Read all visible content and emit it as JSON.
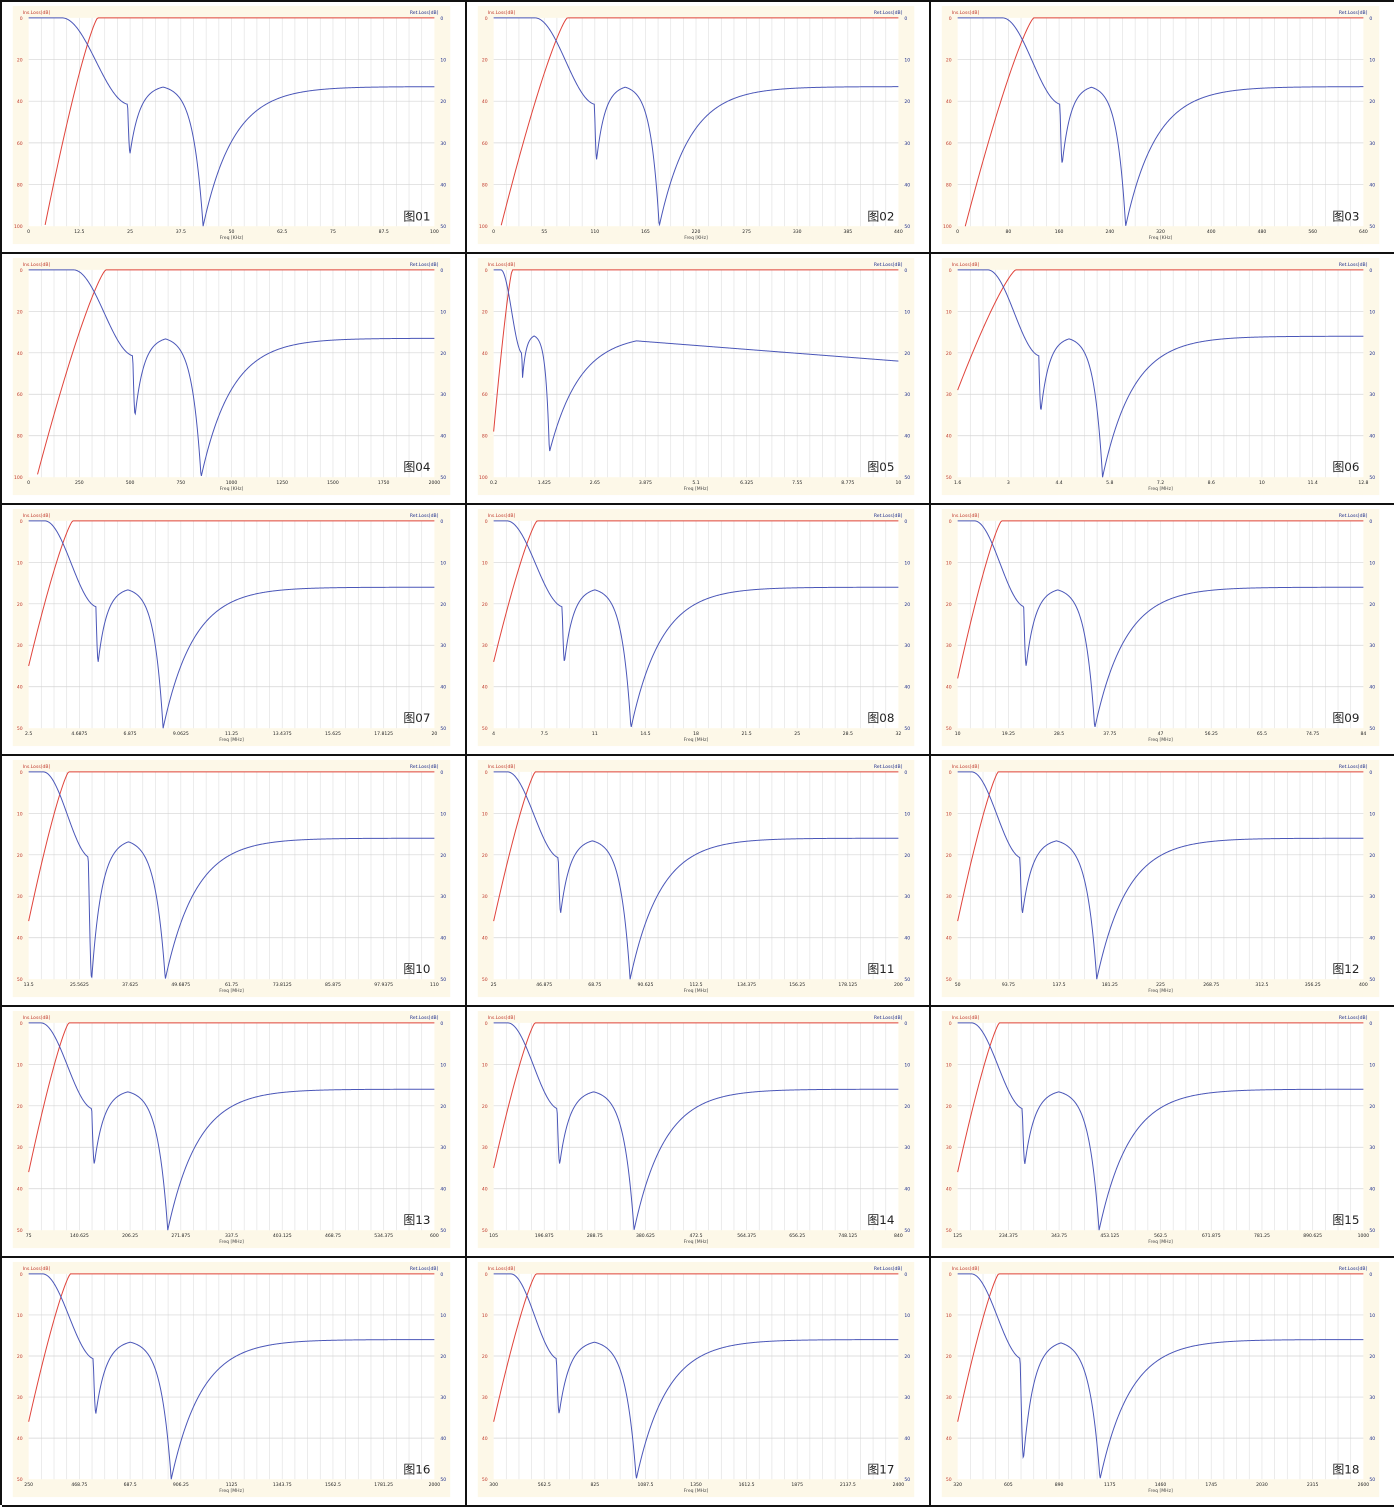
{
  "colors": {
    "insertion_loss": "#e0433a",
    "return_loss": "#4a56b8",
    "panel_bg": "#fdf8e8"
  },
  "chart_data": [
    {
      "type": "line",
      "figure_label": "图01",
      "left_axis_label": "Ins.Loss[dB]",
      "right_axis_label": "Ret.Loss[dB]",
      "xlabel": "Freq [KHz]",
      "x_ticks": [
        "0",
        "12.5",
        "25",
        "37.5",
        "50",
        "62.5",
        "75",
        "87.5",
        "100"
      ],
      "xlim": [
        0,
        100
      ],
      "left_ticks": [
        "0",
        "20",
        "40",
        "60",
        "80",
        "100"
      ],
      "right_ticks": [
        "0",
        "10",
        "20",
        "30",
        "40",
        "50"
      ],
      "left_lim": [
        0,
        100
      ],
      "right_lim": [
        0,
        50
      ],
      "cutoff": 17,
      "notch1": 25,
      "notch1_depth": 32.5,
      "notch2": 43,
      "notch2_depth": 50,
      "hump": 16,
      "hump_x": 29,
      "plateau": 16.5,
      "red_start": 4,
      "red_start_val": 100,
      "tail_to": 16.5
    },
    {
      "type": "line",
      "figure_label": "图02",
      "left_axis_label": "Ins.Loss[dB]",
      "right_axis_label": "Ret.Loss[dB]",
      "xlabel": "Freq [KHz]",
      "x_ticks": [
        "0",
        "55",
        "110",
        "165",
        "220",
        "275",
        "330",
        "385",
        "440"
      ],
      "xlim": [
        0,
        440
      ],
      "left_ticks": [
        "0",
        "20",
        "40",
        "60",
        "80",
        "100"
      ],
      "right_ticks": [
        "0",
        "10",
        "20",
        "30",
        "40",
        "50"
      ],
      "left_lim": [
        0,
        100
      ],
      "right_lim": [
        0,
        50
      ],
      "cutoff": 80,
      "notch1": 112,
      "notch1_depth": 34,
      "notch2": 180,
      "notch2_depth": 50,
      "hump": 16,
      "hump_x": 128,
      "plateau": 16.5,
      "red_start": 8,
      "red_start_val": 100,
      "tail_to": 16.5
    },
    {
      "type": "line",
      "figure_label": "图03",
      "left_axis_label": "Ins.Loss[dB]",
      "right_axis_label": "Ret.Loss[dB]",
      "xlabel": "Freq [KHz]",
      "x_ticks": [
        "0",
        "80",
        "160",
        "240",
        "320",
        "400",
        "480",
        "560",
        "640"
      ],
      "xlim": [
        0,
        640
      ],
      "left_ticks": [
        "0",
        "20",
        "40",
        "60",
        "80",
        "100"
      ],
      "right_ticks": [
        "0",
        "10",
        "20",
        "30",
        "40",
        "50"
      ],
      "left_lim": [
        0,
        100
      ],
      "right_lim": [
        0,
        50
      ],
      "cutoff": 120,
      "notch1": 165,
      "notch1_depth": 35,
      "notch2": 265,
      "notch2_depth": 50,
      "hump": 16,
      "hump_x": 190,
      "plateau": 16.5,
      "red_start": 12,
      "red_start_val": 100,
      "tail_to": 16.5
    },
    {
      "type": "line",
      "figure_label": "图04",
      "left_axis_label": "Ins.Loss[dB]",
      "right_axis_label": "Ret.Loss[dB]",
      "xlabel": "Freq [KHz]",
      "x_ticks": [
        "0",
        "250",
        "500",
        "750",
        "1000",
        "1250",
        "1500",
        "1750",
        "2000"
      ],
      "xlim": [
        0,
        2000
      ],
      "left_ticks": [
        "0",
        "20",
        "40",
        "60",
        "80",
        "100"
      ],
      "right_ticks": [
        "0",
        "10",
        "20",
        "30",
        "40",
        "50"
      ],
      "left_lim": [
        0,
        100
      ],
      "right_lim": [
        0,
        50
      ],
      "cutoff": 380,
      "notch1": 525,
      "notch1_depth": 35,
      "notch2": 850,
      "notch2_depth": 50,
      "hump": 16,
      "hump_x": 600,
      "plateau": 16.5,
      "red_start": 40,
      "red_start_val": 100,
      "tail_to": 16.5
    },
    {
      "type": "line",
      "figure_label": "图05",
      "left_axis_label": "Ins.Loss[dB]",
      "right_axis_label": "Ret.Loss[dB]",
      "xlabel": "Freq [MHz]",
      "x_ticks": [
        "0.2",
        "1.425",
        "2.65",
        "3.875",
        "5.1",
        "6.325",
        "7.55",
        "8.775",
        "10"
      ],
      "xlim": [
        0.2,
        10
      ],
      "left_ticks": [
        "0",
        "20",
        "40",
        "60",
        "80",
        "100"
      ],
      "right_ticks": [
        "0",
        "10",
        "20",
        "30",
        "40",
        "50"
      ],
      "left_lim": [
        0,
        100
      ],
      "right_lim": [
        0,
        50
      ],
      "cutoff": 0.65,
      "notch1": 0.9,
      "notch1_depth": 26,
      "notch2": 1.55,
      "notch2_depth": 44,
      "hump": 15.5,
      "hump_x": 2.5,
      "plateau": 15.5,
      "red_start": 0.2,
      "red_start_val": 78,
      "tail_to": 22
    },
    {
      "type": "line",
      "figure_label": "图06",
      "left_axis_label": "Ins.Loss[dB]",
      "right_axis_label": "Ret.Loss[dB]",
      "xlabel": "Freq [MHz]",
      "x_ticks": [
        "1.6",
        "3",
        "4.4",
        "5.8",
        "7.2",
        "8.6",
        "10",
        "11.4",
        "12.8"
      ],
      "xlim": [
        1.6,
        12.8
      ],
      "left_ticks": [
        "0",
        "10",
        "20",
        "30",
        "40",
        "50"
      ],
      "right_ticks": [
        "0",
        "10",
        "20",
        "30",
        "40",
        "50"
      ],
      "left_lim": [
        0,
        50
      ],
      "right_lim": [
        0,
        50
      ],
      "cutoff": 3.2,
      "notch1": 3.9,
      "notch1_depth": 34,
      "notch2": 5.6,
      "notch2_depth": 50,
      "hump": 16,
      "hump_x": 4.4,
      "plateau": 16,
      "red_start": 1.6,
      "red_start_val": 29,
      "tail_to": 16
    },
    {
      "type": "line",
      "figure_label": "图07",
      "left_axis_label": "Ins.Loss[dB]",
      "right_axis_label": "Ret.Loss[dB]",
      "xlabel": "Freq [MHz]",
      "x_ticks": [
        "2.5",
        "4.6875",
        "6.875",
        "9.0625",
        "11.25",
        "13.4375",
        "15.625",
        "17.8125",
        "20"
      ],
      "xlim": [
        2.5,
        20
      ],
      "left_ticks": [
        "0",
        "10",
        "20",
        "30",
        "40",
        "50"
      ],
      "right_ticks": [
        "0",
        "10",
        "20",
        "30",
        "40",
        "50"
      ],
      "left_lim": [
        0,
        50
      ],
      "right_lim": [
        0,
        50
      ],
      "cutoff": 4.4,
      "notch1": 5.5,
      "notch1_depth": 34,
      "notch2": 8.3,
      "notch2_depth": 50,
      "hump": 16,
      "hump_x": 6.3,
      "plateau": 16,
      "red_start": 2.5,
      "red_start_val": 35,
      "tail_to": 16
    },
    {
      "type": "line",
      "figure_label": "图08",
      "left_axis_label": "Ins.Loss[dB]",
      "right_axis_label": "Ret.Loss[dB]",
      "xlabel": "Freq [MHz]",
      "x_ticks": [
        "4",
        "7.5",
        "11",
        "14.5",
        "18",
        "21.5",
        "25",
        "28.5",
        "32"
      ],
      "xlim": [
        4,
        32
      ],
      "left_ticks": [
        "0",
        "10",
        "20",
        "30",
        "40",
        "50"
      ],
      "right_ticks": [
        "0",
        "10",
        "20",
        "30",
        "40",
        "50"
      ],
      "left_lim": [
        0,
        50
      ],
      "right_lim": [
        0,
        50
      ],
      "cutoff": 7.0,
      "notch1": 8.9,
      "notch1_depth": 34,
      "notch2": 13.5,
      "notch2_depth": 50,
      "hump": 16,
      "hump_x": 10.2,
      "plateau": 16,
      "red_start": 4,
      "red_start_val": 34,
      "tail_to": 16
    },
    {
      "type": "line",
      "figure_label": "图09",
      "left_axis_label": "Ins.Loss[dB]",
      "right_axis_label": "Ret.Loss[dB]",
      "xlabel": "Freq [MHz]",
      "x_ticks": [
        "10",
        "19.25",
        "28.5",
        "37.75",
        "47",
        "56.25",
        "65.5",
        "74.75",
        "84"
      ],
      "xlim": [
        10,
        84
      ],
      "left_ticks": [
        "0",
        "10",
        "20",
        "30",
        "40",
        "50"
      ],
      "right_ticks": [
        "0",
        "10",
        "20",
        "30",
        "40",
        "50"
      ],
      "left_lim": [
        0,
        50
      ],
      "right_lim": [
        0,
        50
      ],
      "cutoff": 18,
      "notch1": 22.5,
      "notch1_depth": 35,
      "notch2": 35,
      "notch2_depth": 50,
      "hump": 16,
      "hump_x": 26,
      "plateau": 16,
      "red_start": 10,
      "red_start_val": 38,
      "tail_to": 16
    },
    {
      "type": "line",
      "figure_label": "图10",
      "left_axis_label": "Ins.Loss[dB]",
      "right_axis_label": "Ret.Loss[dB]",
      "xlabel": "Freq [MHz]",
      "x_ticks": [
        "13.5",
        "25.5625",
        "37.625",
        "49.6875",
        "61.75",
        "73.8125",
        "85.875",
        "97.9375",
        "110"
      ],
      "xlim": [
        13.5,
        110
      ],
      "left_ticks": [
        "0",
        "10",
        "20",
        "30",
        "40",
        "50"
      ],
      "right_ticks": [
        "0",
        "10",
        "20",
        "30",
        "40",
        "50"
      ],
      "left_lim": [
        0,
        50
      ],
      "right_lim": [
        0,
        50
      ],
      "cutoff": 23,
      "notch1": 28.5,
      "notch1_depth": 50,
      "notch2": 46,
      "notch2_depth": 50,
      "hump": 16,
      "hump_x": 33,
      "plateau": 16,
      "red_start": 13.5,
      "red_start_val": 36,
      "tail_to": 16
    },
    {
      "type": "line",
      "figure_label": "图11",
      "left_axis_label": "Ins.Loss[dB]",
      "right_axis_label": "Ret.Loss[dB]",
      "xlabel": "Freq [MHz]",
      "x_ticks": [
        "25",
        "46.875",
        "68.75",
        "90.625",
        "112.5",
        "134.375",
        "156.25",
        "178.125",
        "200"
      ],
      "xlim": [
        25,
        200
      ],
      "left_ticks": [
        "0",
        "10",
        "20",
        "30",
        "40",
        "50"
      ],
      "right_ticks": [
        "0",
        "10",
        "20",
        "30",
        "40",
        "50"
      ],
      "left_lim": [
        0,
        50
      ],
      "right_lim": [
        0,
        50
      ],
      "cutoff": 43,
      "notch1": 54,
      "notch1_depth": 34,
      "notch2": 84,
      "notch2_depth": 50,
      "hump": 16,
      "hump_x": 62,
      "plateau": 16,
      "red_start": 25,
      "red_start_val": 36,
      "tail_to": 16
    },
    {
      "type": "line",
      "figure_label": "图12",
      "left_axis_label": "Ins.Loss[dB]",
      "right_axis_label": "Ret.Loss[dB]",
      "xlabel": "Freq [MHz]",
      "x_ticks": [
        "50",
        "93.75",
        "137.5",
        "181.25",
        "225",
        "268.75",
        "312.5",
        "356.25",
        "400"
      ],
      "xlim": [
        50,
        400
      ],
      "left_ticks": [
        "0",
        "10",
        "20",
        "30",
        "40",
        "50"
      ],
      "right_ticks": [
        "0",
        "10",
        "20",
        "30",
        "40",
        "50"
      ],
      "left_lim": [
        0,
        50
      ],
      "right_lim": [
        0,
        50
      ],
      "cutoff": 85,
      "notch1": 106,
      "notch1_depth": 34,
      "notch2": 170,
      "notch2_depth": 50,
      "hump": 16,
      "hump_x": 124,
      "plateau": 16,
      "red_start": 50,
      "red_start_val": 36,
      "tail_to": 16
    },
    {
      "type": "line",
      "figure_label": "图13",
      "left_axis_label": "Ins.Loss[dB]",
      "right_axis_label": "Ret.Loss[dB]",
      "xlabel": "Freq [MHz]",
      "x_ticks": [
        "75",
        "140.625",
        "206.25",
        "271.875",
        "337.5",
        "403.125",
        "468.75",
        "534.375",
        "600"
      ],
      "xlim": [
        75,
        600
      ],
      "left_ticks": [
        "0",
        "10",
        "20",
        "30",
        "40",
        "50"
      ],
      "right_ticks": [
        "0",
        "10",
        "20",
        "30",
        "40",
        "50"
      ],
      "left_lim": [
        0,
        50
      ],
      "right_lim": [
        0,
        50
      ],
      "cutoff": 127,
      "notch1": 160,
      "notch1_depth": 34,
      "notch2": 255,
      "notch2_depth": 50,
      "hump": 16,
      "hump_x": 185,
      "plateau": 16,
      "red_start": 75,
      "red_start_val": 36,
      "tail_to": 16
    },
    {
      "type": "line",
      "figure_label": "图14",
      "left_axis_label": "Ins.Loss[dB]",
      "right_axis_label": "Ret.Loss[dB]",
      "xlabel": "Freq [MHz]",
      "x_ticks": [
        "105",
        "196.875",
        "288.75",
        "380.625",
        "472.5",
        "564.375",
        "656.25",
        "748.125",
        "840"
      ],
      "xlim": [
        105,
        840
      ],
      "left_ticks": [
        "0",
        "10",
        "20",
        "30",
        "40",
        "50"
      ],
      "right_ticks": [
        "0",
        "10",
        "20",
        "30",
        "40",
        "50"
      ],
      "left_lim": [
        0,
        50
      ],
      "right_lim": [
        0,
        50
      ],
      "cutoff": 180,
      "notch1": 225,
      "notch1_depth": 34,
      "notch2": 360,
      "notch2_depth": 50,
      "hump": 16,
      "hump_x": 262,
      "plateau": 16,
      "red_start": 105,
      "red_start_val": 35,
      "tail_to": 16
    },
    {
      "type": "line",
      "figure_label": "图15",
      "left_axis_label": "Ins.Loss[dB]",
      "right_axis_label": "Ret.Loss[dB]",
      "xlabel": "Freq [MHz]",
      "x_ticks": [
        "125",
        "234.375",
        "343.75",
        "453.125",
        "562.5",
        "671.875",
        "781.25",
        "890.625",
        "1000"
      ],
      "xlim": [
        125,
        1000
      ],
      "left_ticks": [
        "0",
        "10",
        "20",
        "30",
        "40",
        "50"
      ],
      "right_ticks": [
        "0",
        "10",
        "20",
        "30",
        "40",
        "50"
      ],
      "left_lim": [
        0,
        50
      ],
      "right_lim": [
        0,
        50
      ],
      "cutoff": 215,
      "notch1": 270,
      "notch1_depth": 34,
      "notch2": 430,
      "notch2_depth": 50,
      "hump": 16,
      "hump_x": 310,
      "plateau": 16,
      "red_start": 125,
      "red_start_val": 36,
      "tail_to": 16
    },
    {
      "type": "line",
      "figure_label": "图16",
      "left_axis_label": "Ins.Loss[dB]",
      "right_axis_label": "Ret.Loss[dB]",
      "xlabel": "Freq [MHz]",
      "x_ticks": [
        "250",
        "468.75",
        "687.5",
        "906.25",
        "1125",
        "1343.75",
        "1562.5",
        "1781.25",
        "2000"
      ],
      "xlim": [
        250,
        2000
      ],
      "left_ticks": [
        "0",
        "10",
        "20",
        "30",
        "40",
        "50"
      ],
      "right_ticks": [
        "0",
        "10",
        "20",
        "30",
        "40",
        "50"
      ],
      "left_lim": [
        0,
        50
      ],
      "right_lim": [
        0,
        50
      ],
      "cutoff": 430,
      "notch1": 540,
      "notch1_depth": 34,
      "notch2": 865,
      "notch2_depth": 50,
      "hump": 16,
      "hump_x": 620,
      "plateau": 16,
      "red_start": 250,
      "red_start_val": 36,
      "tail_to": 16
    },
    {
      "type": "line",
      "figure_label": "图17",
      "left_axis_label": "Ins.Loss[dB]",
      "right_axis_label": "Ret.Loss[dB]",
      "xlabel": "Freq [MHz]",
      "x_ticks": [
        "300",
        "562.5",
        "825",
        "1087.5",
        "1350",
        "1612.5",
        "1875",
        "2137.5",
        "2400"
      ],
      "xlim": [
        300,
        2400
      ],
      "left_ticks": [
        "0",
        "10",
        "20",
        "30",
        "40",
        "50"
      ],
      "right_ticks": [
        "0",
        "10",
        "20",
        "30",
        "40",
        "50"
      ],
      "left_lim": [
        0,
        50
      ],
      "right_lim": [
        0,
        50
      ],
      "cutoff": 520,
      "notch1": 640,
      "notch1_depth": 34,
      "notch2": 1040,
      "notch2_depth": 50,
      "hump": 16,
      "hump_x": 740,
      "plateau": 16,
      "red_start": 300,
      "red_start_val": 36,
      "tail_to": 16
    },
    {
      "type": "line",
      "figure_label": "图18",
      "left_axis_label": "Ins.Loss[dB]",
      "right_axis_label": "Ret.Loss[dB]",
      "xlabel": "Freq [MHz]",
      "x_ticks": [
        "320",
        "605",
        "890",
        "1175",
        "1460",
        "1745",
        "2030",
        "2315",
        "2600"
      ],
      "xlim": [
        320,
        2600
      ],
      "left_ticks": [
        "0",
        "10",
        "20",
        "30",
        "40",
        "50"
      ],
      "right_ticks": [
        "0",
        "10",
        "20",
        "30",
        "40",
        "50"
      ],
      "left_lim": [
        0,
        50
      ],
      "right_lim": [
        0,
        50
      ],
      "cutoff": 550,
      "notch1": 690,
      "notch1_depth": 45,
      "notch2": 1120,
      "notch2_depth": 50,
      "hump": 16,
      "hump_x": 785,
      "plateau": 16,
      "red_start": 320,
      "red_start_val": 36,
      "tail_to": 16
    }
  ]
}
